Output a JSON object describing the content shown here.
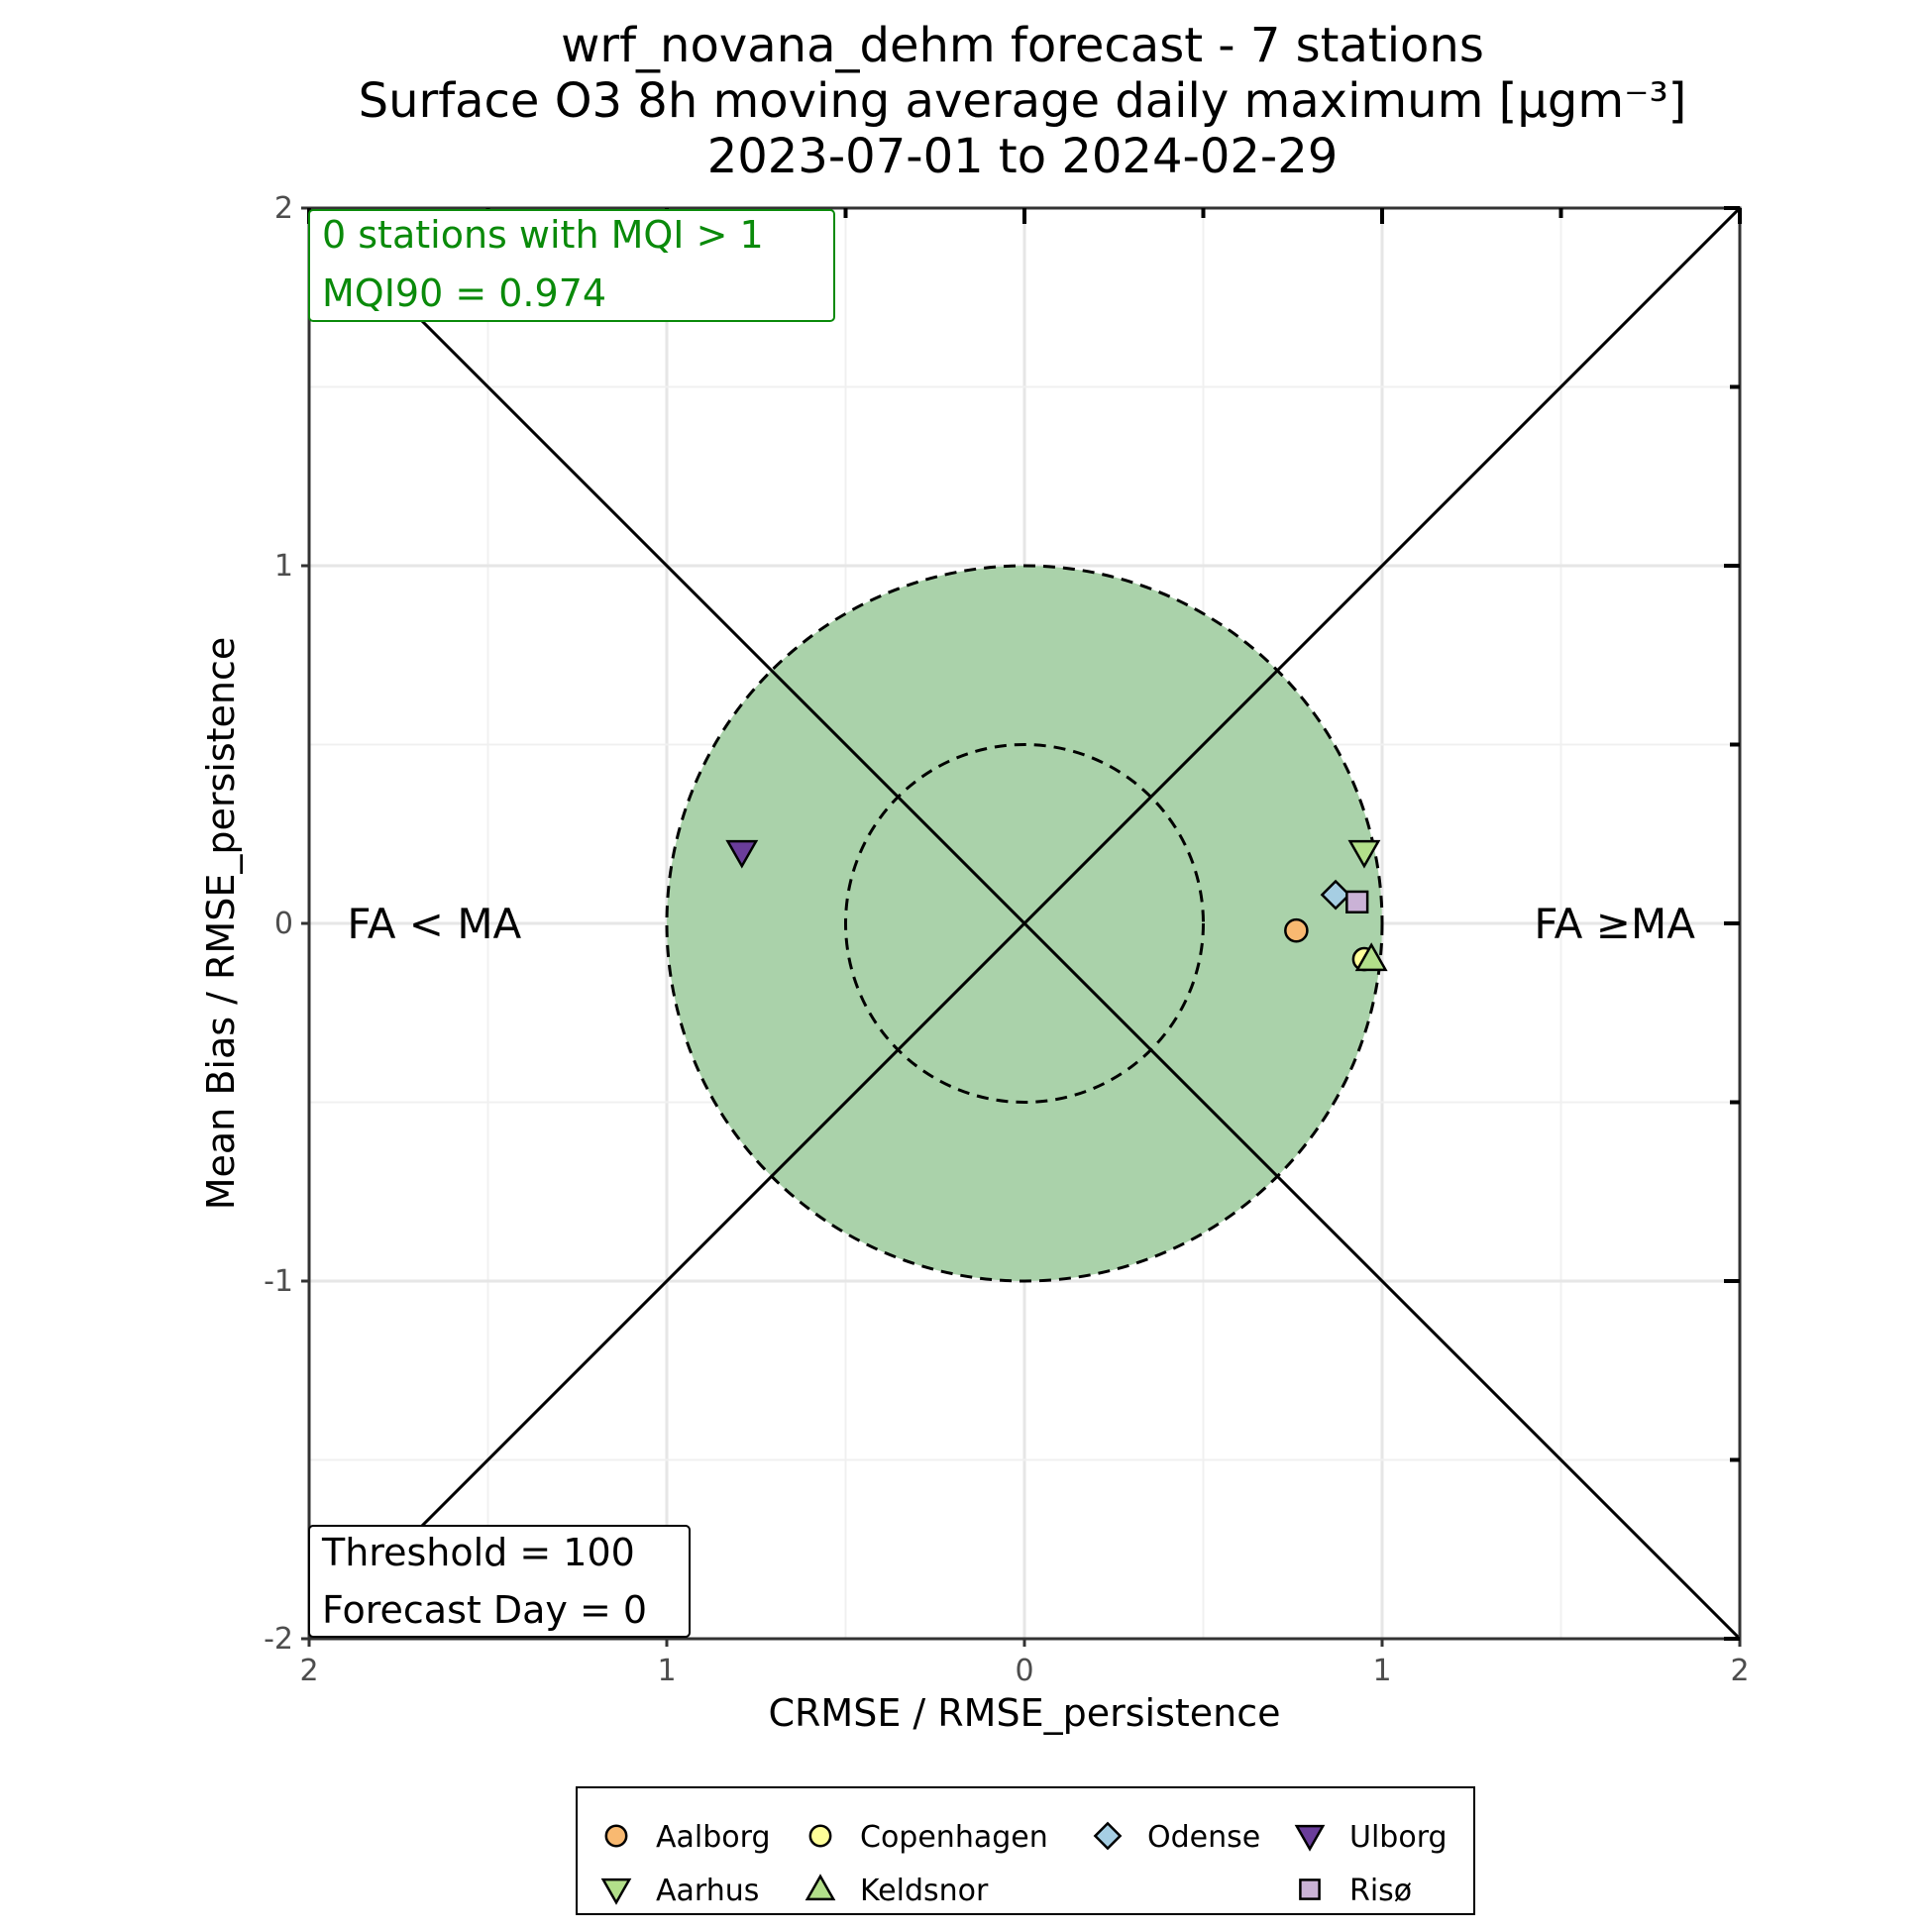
{
  "chart_data": {
    "type": "scatter",
    "title_lines": [
      "wrf_novana_dehm forecast - 7 stations",
      "Surface O3 8h moving average daily maximum [µgm⁻³]",
      "2023-07-01 to 2024-02-29"
    ],
    "xlabel": "CRMSE / RMSE_persistence",
    "ylabel": "Mean Bias / RMSE_persistence",
    "xlim": [
      -2,
      2
    ],
    "ylim": [
      -2,
      2
    ],
    "x_ticks": [
      {
        "value": -2,
        "label": "2"
      },
      {
        "value": -1,
        "label": "1"
      },
      {
        "value": 0,
        "label": "0"
      },
      {
        "value": 1,
        "label": "1"
      },
      {
        "value": 2,
        "label": "2"
      }
    ],
    "y_ticks": [
      {
        "value": 2,
        "label": "2"
      },
      {
        "value": 1,
        "label": "1"
      },
      {
        "value": 0,
        "label": "0"
      },
      {
        "value": -1,
        "label": "-1"
      },
      {
        "value": -2,
        "label": "-2"
      }
    ],
    "grid": true,
    "circles": [
      {
        "radius": 1.0,
        "fill": "#a8d1a8",
        "dashed": true
      },
      {
        "radius": 0.5,
        "fill": "none",
        "dashed": true
      }
    ],
    "region_labels": [
      {
        "text": "FA < MA",
        "x": -1.65,
        "y": 0.0
      },
      {
        "text": "FA ≥MA",
        "x": 1.65,
        "y": 0.0
      }
    ],
    "info_top": [
      "0 stations with MQI > 1",
      "MQI90 = 0.974"
    ],
    "info_bottom": [
      "Threshold = 100",
      "Forecast Day = 0"
    ],
    "series": [
      {
        "name": "Aalborg",
        "marker": "circle",
        "color": "#f8b971",
        "x": 0.76,
        "y": -0.02
      },
      {
        "name": "Aarhus",
        "marker": "triangle-down",
        "color": "#b2df8a",
        "x": 0.95,
        "y": 0.2
      },
      {
        "name": "Copenhagen",
        "marker": "circle",
        "color": "#ffff99",
        "x": 0.95,
        "y": -0.1
      },
      {
        "name": "Keldsnor",
        "marker": "triangle-up",
        "color": "#b2df8a",
        "x": 0.97,
        "y": -0.1
      },
      {
        "name": "Odense",
        "marker": "diamond",
        "color": "#a6cee3",
        "x": 0.87,
        "y": 0.08
      },
      {
        "name": "Risø",
        "marker": "square",
        "color": "#cab2d6",
        "x": 0.93,
        "y": 0.06
      },
      {
        "name": "Ulborg",
        "marker": "triangle-down",
        "color": "#6a3d9a",
        "x": -0.79,
        "y": 0.2
      }
    ],
    "legend": {
      "placement": "bottom",
      "rows": [
        [
          "Aalborg",
          "Copenhagen",
          "Odense",
          "Ulborg"
        ],
        [
          "Aarhus",
          "Keldsnor",
          "",
          "Risø"
        ]
      ]
    },
    "colors": {
      "target_fill": "#a8d1a8",
      "info_green": "#0a8a0a"
    }
  }
}
